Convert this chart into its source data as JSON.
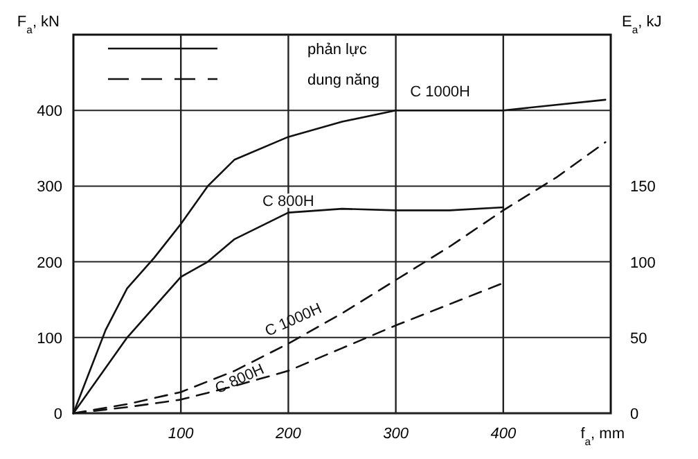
{
  "chart_data": {
    "type": "line",
    "xlabel": "f$_{a}$, mm",
    "ylabel": "F$_{a}$, kN",
    "y2label": "E$_{a}$, kJ",
    "xlim": [
      0,
      500
    ],
    "xticks": [
      100,
      200,
      300,
      400
    ],
    "ylim": [
      0,
      500
    ],
    "yticks": [
      0,
      100,
      200,
      300,
      400
    ],
    "y2lim": [
      0,
      250
    ],
    "y2ticks": [
      0,
      50,
      100,
      150
    ],
    "grid": true,
    "marker": "none",
    "annotations": [
      "phản lực",
      "dung năng"
    ],
    "series": [
      {
        "name": "C 1000H",
        "color": "#111111",
        "line_style": "solid",
        "axis": "y",
        "x": [
          0,
          30,
          50,
          75,
          100,
          125,
          150,
          200,
          250,
          300,
          350,
          400,
          495
        ],
        "values": [
          0,
          110,
          165,
          205,
          250,
          300,
          335,
          365,
          385,
          400,
          400,
          400,
          414
        ]
      },
      {
        "name": "C 800H",
        "color": "#111111",
        "line_style": "solid",
        "axis": "y",
        "x": [
          0,
          50,
          100,
          125,
          150,
          200,
          250,
          300,
          350,
          400
        ],
        "values": [
          0,
          100,
          180,
          200,
          230,
          265,
          270,
          268,
          268,
          272
        ]
      },
      {
        "name": "C 1000H",
        "color": "#111111",
        "line_style": "dashed",
        "axis": "y2",
        "x": [
          0,
          50,
          100,
          150,
          200,
          250,
          300,
          350,
          400,
          450,
          495
        ],
        "values": [
          0,
          6,
          14,
          28,
          46,
          66,
          88,
          110,
          134,
          156,
          179
        ]
      },
      {
        "name": "C 800H",
        "color": "#111111",
        "line_style": "dashed",
        "axis": "y2",
        "x": [
          0,
          50,
          100,
          150,
          200,
          250,
          300,
          350,
          400
        ],
        "values": [
          0,
          4,
          9,
          18,
          28,
          43,
          58,
          72,
          86
        ]
      }
    ]
  }
}
